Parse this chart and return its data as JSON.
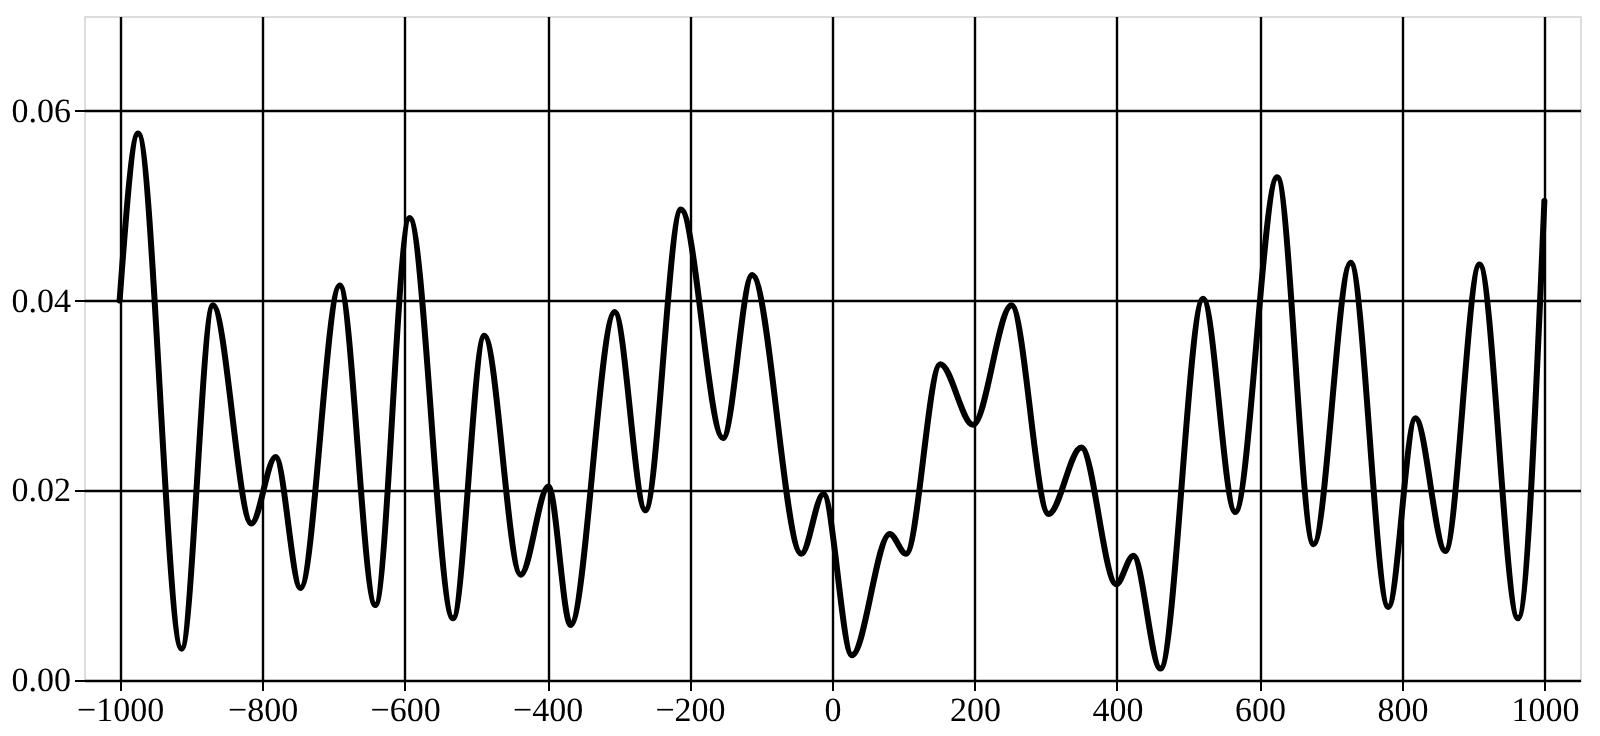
{
  "chart_data": {
    "type": "line",
    "grid": true,
    "line_style": "solid",
    "marker": "none",
    "xlim": [
      -1050,
      1050
    ],
    "ylim": [
      0,
      0.07
    ],
    "xticks": [
      -1000,
      -800,
      -600,
      -400,
      -200,
      0,
      200,
      400,
      600,
      800,
      1000
    ],
    "yticks": [
      {
        "value": 0,
        "label": "0.00"
      },
      {
        "value": 0.02,
        "label": "0.02"
      },
      {
        "value": 0.04,
        "label": "0.04"
      },
      {
        "value": 0.06,
        "label": "0.06"
      }
    ],
    "series": [
      {
        "color": "#000000",
        "x": [
          -1000,
          -974,
          -913,
          -869,
          -815,
          -781,
          -746,
          -691,
          -641,
          -593,
          -532,
          -488,
          -437,
          -398,
          -367,
          -305,
          -262,
          -212,
          -153,
          -112,
          -43,
          -12,
          28,
          81,
          104,
          152,
          198,
          252,
          304,
          350,
          399,
          423,
          461,
          521,
          566,
          625,
          676,
          728,
          781,
          819,
          861,
          909,
          963,
          1000
        ],
        "values": [
          0.04,
          0.0576,
          0.0033,
          0.0395,
          0.0165,
          0.0235,
          0.0097,
          0.0416,
          0.0079,
          0.0487,
          0.0065,
          0.0363,
          0.0111,
          0.0204,
          0.0058,
          0.0388,
          0.0179,
          0.0496,
          0.0255,
          0.0427,
          0.0133,
          0.0196,
          0.0026,
          0.0154,
          0.0133,
          0.0333,
          0.0269,
          0.0395,
          0.0175,
          0.0245,
          0.0101,
          0.0131,
          0.0012,
          0.0402,
          0.0177,
          0.053,
          0.0143,
          0.044,
          0.0077,
          0.0276,
          0.0136,
          0.0438,
          0.0065,
          0.0505
        ]
      }
    ]
  }
}
